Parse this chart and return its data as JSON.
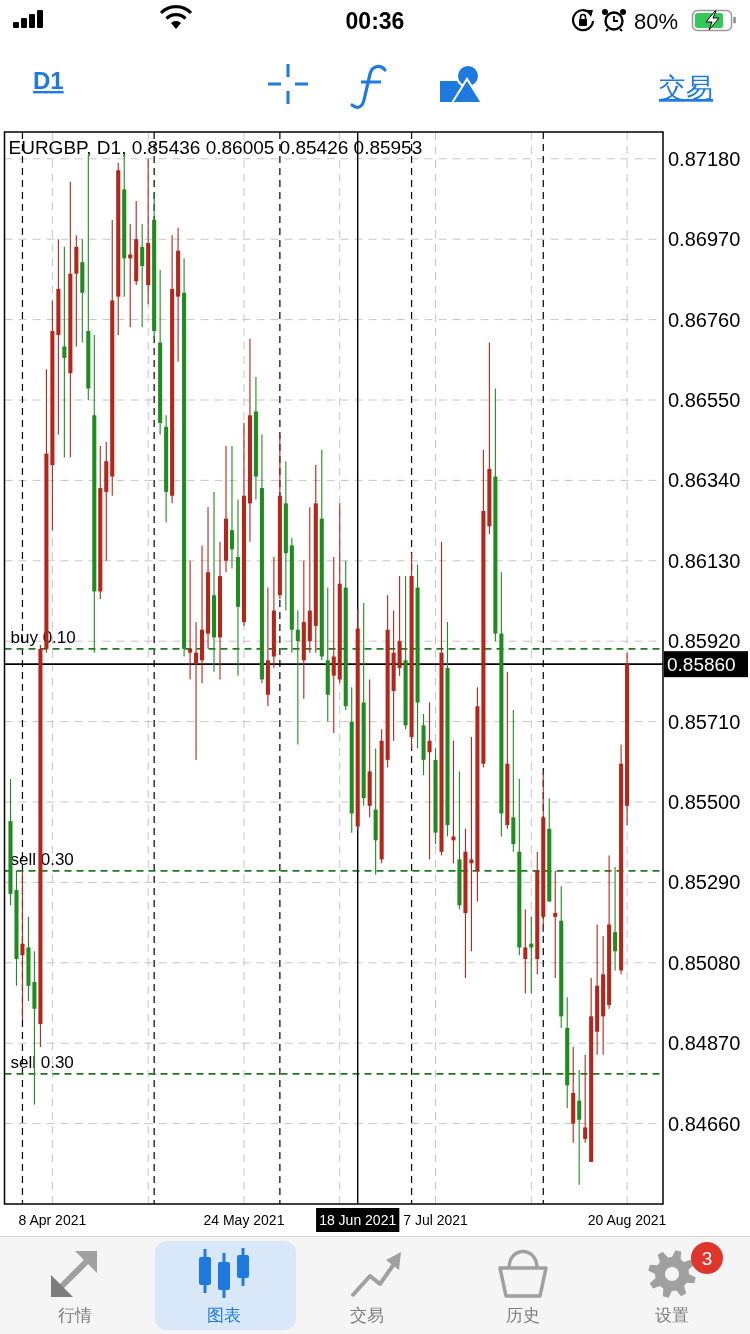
{
  "chart_data": {
    "type": "candlestick",
    "title": "EURGBP, D1, 0.85436 0.86005 0.85426 0.85953",
    "categories": [
      null,
      null,
      null,
      null,
      null,
      null,
      null,
      "8 Apr 2021",
      null,
      null,
      null,
      null,
      null,
      null,
      null,
      null,
      null,
      null,
      null,
      null,
      null,
      null,
      null,
      null,
      null,
      null,
      null,
      null,
      null,
      null,
      null,
      null,
      null,
      null,
      null,
      null,
      null,
      null,
      null,
      "24 May 2021",
      null,
      null,
      null,
      null,
      null,
      null,
      null,
      null,
      null,
      null,
      null,
      null,
      null,
      null,
      null,
      null,
      null,
      null,
      "18 Jun 2021",
      null,
      null,
      null,
      null,
      null,
      null,
      null,
      null,
      null,
      null,
      null,
      null,
      "7 Jul 2021",
      null,
      null,
      null,
      null,
      null,
      null,
      null,
      null,
      null,
      null,
      null,
      null,
      null,
      null,
      null,
      null,
      null,
      null,
      null,
      null,
      null,
      null,
      null,
      null,
      null,
      null,
      null,
      null,
      null,
      null,
      null,
      "20 Aug 2021"
    ],
    "ohlc": [
      [
        0.8545,
        0.8556,
        0.8523,
        0.8526
      ],
      [
        0.8527,
        0.8532,
        0.8502,
        0.8509
      ],
      [
        0.851,
        0.8532,
        0.8493,
        0.8513
      ],
      [
        0.8512,
        0.852,
        0.8498,
        0.8502
      ],
      [
        0.8503,
        0.8511,
        0.8471,
        0.8496
      ],
      [
        0.8492,
        0.8591,
        0.8486,
        0.859
      ],
      [
        0.859,
        0.8663,
        0.8589,
        0.8641
      ],
      [
        0.8638,
        0.8681,
        0.8621,
        0.8673
      ],
      [
        0.8672,
        0.8697,
        0.8646,
        0.8684
      ],
      [
        0.8669,
        0.8695,
        0.864,
        0.8666
      ],
      [
        0.8662,
        0.8712,
        0.864,
        0.8688
      ],
      [
        0.8688,
        0.8698,
        0.8669,
        0.8695
      ],
      [
        0.8691,
        0.8697,
        0.867,
        0.8683
      ],
      [
        0.8673,
        0.8719,
        0.8655,
        0.8658
      ],
      [
        0.8651,
        0.8672,
        0.8589,
        0.8605
      ],
      [
        0.8605,
        0.8643,
        0.8603,
        0.8632
      ],
      [
        0.8631,
        0.8644,
        0.8613,
        0.8639
      ],
      [
        0.8635,
        0.8702,
        0.863,
        0.8681
      ],
      [
        0.8682,
        0.8717,
        0.8672,
        0.8715
      ],
      [
        0.871,
        0.8719,
        0.8682,
        0.8692
      ],
      [
        0.8692,
        0.8701,
        0.8674,
        0.8693
      ],
      [
        0.8686,
        0.8707,
        0.8685,
        0.8697
      ],
      [
        0.8695,
        0.8701,
        0.8674,
        0.869
      ],
      [
        0.8685,
        0.8718,
        0.868,
        0.8696
      ],
      [
        0.8702,
        0.8709,
        0.8671,
        0.8673
      ],
      [
        0.867,
        0.8689,
        0.8646,
        0.8649
      ],
      [
        0.8648,
        0.8651,
        0.8623,
        0.8631
      ],
      [
        0.863,
        0.8698,
        0.8628,
        0.8684
      ],
      [
        0.8682,
        0.87,
        0.8665,
        0.8694
      ],
      [
        0.8683,
        0.8692,
        0.8588,
        0.859
      ],
      [
        0.8589,
        0.8613,
        0.8582,
        0.859
      ],
      [
        0.8586,
        0.8597,
        0.8561,
        0.8589
      ],
      [
        0.8587,
        0.8617,
        0.8581,
        0.8595
      ],
      [
        0.8594,
        0.8627,
        0.859,
        0.861
      ],
      [
        0.8604,
        0.8631,
        0.8584,
        0.8593
      ],
      [
        0.8593,
        0.8618,
        0.8582,
        0.8609
      ],
      [
        0.8613,
        0.8643,
        0.861,
        0.8624
      ],
      [
        0.8621,
        0.8643,
        0.8611,
        0.8616
      ],
      [
        0.8614,
        0.8629,
        0.8583,
        0.8601
      ],
      [
        0.8597,
        0.8649,
        0.8596,
        0.863
      ],
      [
        0.8628,
        0.8671,
        0.8618,
        0.8651
      ],
      [
        0.8652,
        0.8661,
        0.8629,
        0.8635
      ],
      [
        0.8632,
        0.8646,
        0.8581,
        0.8582
      ],
      [
        0.8578,
        0.8606,
        0.8575,
        0.8587
      ],
      [
        0.8588,
        0.8614,
        0.8585,
        0.86
      ],
      [
        0.8604,
        0.8646,
        0.8603,
        0.863
      ],
      [
        0.8628,
        0.8639,
        0.86,
        0.8615
      ],
      [
        0.8617,
        0.8619,
        0.8589,
        0.8595
      ],
      [
        0.8595,
        0.86,
        0.8565,
        0.8592
      ],
      [
        0.8587,
        0.8613,
        0.8577,
        0.8597
      ],
      [
        0.8592,
        0.8627,
        0.8589,
        0.86
      ],
      [
        0.8596,
        0.8638,
        0.8589,
        0.8628
      ],
      [
        0.8624,
        0.8642,
        0.8587,
        0.8588
      ],
      [
        0.8587,
        0.8606,
        0.8571,
        0.8578
      ],
      [
        0.8583,
        0.8614,
        0.8568,
        0.8588
      ],
      [
        0.8582,
        0.8628,
        0.8581,
        0.8607
      ],
      [
        0.8606,
        0.8613,
        0.8574,
        0.8575
      ],
      [
        0.8571,
        0.858,
        0.8542,
        0.8547
      ],
      [
        0.85436,
        0.86005,
        0.85426,
        0.85953
      ],
      [
        0.8576,
        0.8602,
        0.8549,
        0.8551
      ],
      [
        0.8549,
        0.8582,
        0.8546,
        0.8558
      ],
      [
        0.8548,
        0.8564,
        0.8531,
        0.854
      ],
      [
        0.8535,
        0.8569,
        0.8534,
        0.8566
      ],
      [
        0.8561,
        0.8604,
        0.8559,
        0.8595
      ],
      [
        0.8579,
        0.86,
        0.8566,
        0.8589
      ],
      [
        0.8585,
        0.8609,
        0.8583,
        0.8592
      ],
      [
        0.8587,
        0.8609,
        0.8569,
        0.857
      ],
      [
        0.8567,
        0.8615,
        0.8564,
        0.8609
      ],
      [
        0.8606,
        0.8612,
        0.8564,
        0.8576
      ],
      [
        0.857,
        0.8573,
        0.8557,
        0.8561
      ],
      [
        0.8563,
        0.8576,
        0.8535,
        0.8566
      ],
      [
        0.8561,
        0.8564,
        0.8539,
        0.8542
      ],
      [
        0.8537,
        0.8618,
        0.8536,
        0.8589
      ],
      [
        0.8585,
        0.8597,
        0.8541,
        0.8544
      ],
      [
        0.854,
        0.8566,
        0.8534,
        0.8541
      ],
      [
        0.8535,
        0.8558,
        0.8522,
        0.8523
      ],
      [
        0.8521,
        0.8543,
        0.8504,
        0.8537
      ],
      [
        0.8534,
        0.8567,
        0.8511,
        0.8535
      ],
      [
        0.8532,
        0.858,
        0.8524,
        0.8575
      ],
      [
        0.856,
        0.8642,
        0.8559,
        0.8626
      ],
      [
        0.8622,
        0.867,
        0.862,
        0.8637
      ],
      [
        0.8635,
        0.8658,
        0.8592,
        0.8594
      ],
      [
        0.8594,
        0.861,
        0.8541,
        0.8547
      ],
      [
        0.8544,
        0.8584,
        0.8543,
        0.856
      ],
      [
        0.8546,
        0.8574,
        0.8537,
        0.8539
      ],
      [
        0.8537,
        0.8556,
        0.851,
        0.8512
      ],
      [
        0.8509,
        0.8522,
        0.85,
        0.8512
      ],
      [
        0.8513,
        0.852,
        0.85,
        0.8512
      ],
      [
        0.8509,
        0.8537,
        0.8505,
        0.8532
      ],
      [
        0.852,
        0.8558,
        0.8516,
        0.8546
      ],
      [
        0.8543,
        0.8551,
        0.8524,
        0.8524
      ],
      [
        0.852,
        0.8532,
        0.8504,
        0.8521
      ],
      [
        0.8519,
        0.8528,
        0.8491,
        0.8494
      ],
      [
        0.8491,
        0.8499,
        0.847,
        0.8476
      ],
      [
        0.8466,
        0.8486,
        0.8461,
        0.8474
      ],
      [
        0.8472,
        0.848,
        0.845,
        0.8467
      ],
      [
        0.8462,
        0.8484,
        0.8461,
        0.8465
      ],
      [
        0.8456,
        0.8504,
        0.8456,
        0.8494
      ],
      [
        0.849,
        0.8518,
        0.8484,
        0.8502
      ],
      [
        0.8494,
        0.8515,
        0.8484,
        0.8505
      ],
      [
        0.8497,
        0.8536,
        0.8496,
        0.8518
      ],
      [
        0.8516,
        0.8533,
        0.8506,
        0.8511
      ],
      [
        0.8506,
        0.8565,
        0.8505,
        0.856
      ],
      [
        0.8549,
        0.8589,
        0.8544,
        0.8586
      ]
    ],
    "colors": [
      "#1e8c1e",
      "#1e8c1e",
      "#b3261b",
      "#1e8c1e",
      "#1e8c1e",
      "#b3261b",
      "#b3261b",
      "#b3261b",
      "#b3261b",
      "#1e8c1e",
      "#b3261b",
      "#b3261b",
      "#1e8c1e",
      "#1e8c1e",
      "#1e8c1e",
      "#b3261b",
      "#b3261b",
      "#b3261b",
      "#b3261b",
      "#1e8c1e",
      "#b3261b",
      "#b3261b",
      "#1e8c1e",
      "#b3261b",
      "#1e8c1e",
      "#1e8c1e",
      "#1e8c1e",
      "#b3261b",
      "#b3261b",
      "#1e8c1e",
      "#b3261b",
      "#b3261b",
      "#b3261b",
      "#b3261b",
      "#1e8c1e",
      "#b3261b",
      "#b3261b",
      "#1e8c1e",
      "#1e8c1e",
      "#b3261b",
      "#b3261b",
      "#1e8c1e",
      "#1e8c1e",
      "#b3261b",
      "#b3261b",
      "#b3261b",
      "#1e8c1e",
      "#1e8c1e",
      "#1e8c1e",
      "#b3261b",
      "#b3261b",
      "#b3261b",
      "#1e8c1e",
      "#1e8c1e",
      "#b3261b",
      "#b3261b",
      "#1e8c1e",
      "#1e8c1e",
      "#b3261b",
      "#1e8c1e",
      "#b3261b",
      "#1e8c1e",
      "#b3261b",
      "#b3261b",
      "#b3261b",
      "#b3261b",
      "#1e8c1e",
      "#b3261b",
      "#1e8c1e",
      "#1e8c1e",
      "#b3261b",
      "#1e8c1e",
      "#b3261b",
      "#1e8c1e",
      "#b3261b",
      "#1e8c1e",
      "#b3261b",
      "#b3261b",
      "#b3261b",
      "#b3261b",
      "#b3261b",
      "#1e8c1e",
      "#1e8c1e",
      "#b3261b",
      "#1e8c1e",
      "#1e8c1e",
      "#b3261b",
      "#1e8c1e",
      "#b3261b",
      "#b3261b",
      "#1e8c1e",
      "#b3261b",
      "#1e8c1e",
      "#1e8c1e",
      "#b3261b",
      "#1e8c1e",
      "#b3261b",
      "#b3261b",
      "#b3261b",
      "#b3261b",
      "#b3261b",
      "#1e8c1e",
      "#b3261b",
      "#b3261b"
    ],
    "ylim": [
      0.8445,
      0.8725
    ],
    "yticks": [
      {
        "value": 0.8466,
        "label": "0.84660"
      },
      {
        "value": 0.8487,
        "label": "0.84870"
      },
      {
        "value": 0.8508,
        "label": "0.85080"
      },
      {
        "value": 0.8529,
        "label": "0.85290"
      },
      {
        "value": 0.855,
        "label": "0.85500"
      },
      {
        "value": 0.8571,
        "label": "0.85710"
      },
      {
        "value": 0.8592,
        "label": "0.85920"
      },
      {
        "value": 0.8613,
        "label": "0.86130"
      },
      {
        "value": 0.8634,
        "label": "0.86340"
      },
      {
        "value": 0.8655,
        "label": "0.86550"
      },
      {
        "value": 0.8676,
        "label": "0.86760"
      },
      {
        "value": 0.8697,
        "label": "0.86970"
      },
      {
        "value": 0.8718,
        "label": "0.87180"
      }
    ],
    "grid": true,
    "ref_lines": [
      {
        "axis": "y",
        "value": 0.859,
        "label": "buy 0.10",
        "color": "#207a20",
        "line_style": "dashed"
      },
      {
        "axis": "y",
        "value": 0.8532,
        "label": "sell 0.30",
        "color": "#207a20",
        "line_style": "dashed"
      },
      {
        "axis": "y",
        "value": 0.8479,
        "label": "sell 0.30",
        "color": "#207a20",
        "line_style": "dashed"
      },
      {
        "axis": "x",
        "value": "18 Jun 2021",
        "color": "#000000",
        "line_style": "solid"
      },
      {
        "axis": "y",
        "value": 0.8586,
        "label": "0.85860",
        "color": "#000000",
        "line_style": "solid"
      }
    ],
    "annotations": [
      "00:36",
      "80%",
      "D1",
      "交易",
      "行情",
      "图表",
      "交易",
      "历史",
      "设置",
      "3"
    ]
  }
}
